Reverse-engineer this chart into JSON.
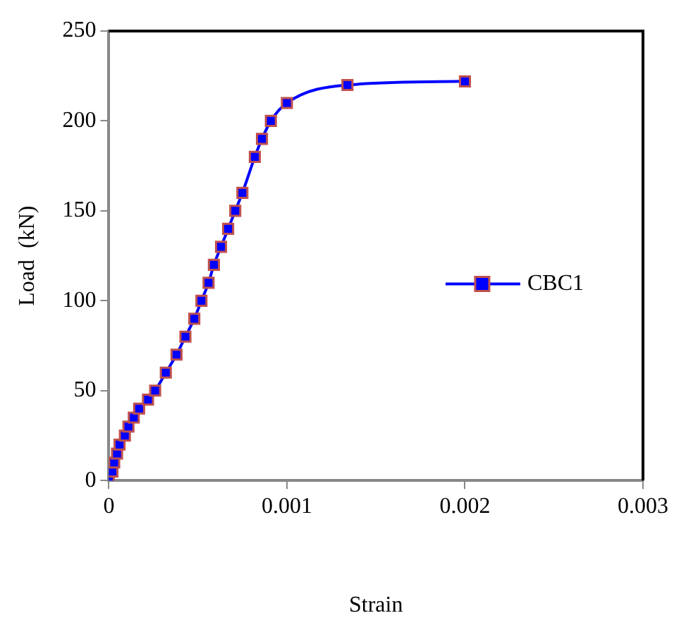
{
  "chart_data": {
    "type": "line",
    "xlabel": "Strain",
    "ylabel": "Load  (kN)",
    "x": [
      0,
      2e-05,
      3e-05,
      4.6e-05,
      6e-05,
      9e-05,
      0.00011,
      0.00014,
      0.00017,
      0.00022,
      0.00026,
      0.00032,
      0.00038,
      0.00043,
      0.00048,
      0.00052,
      0.00056,
      0.00059,
      0.00063,
      0.00067,
      0.00071,
      0.00075,
      0.00082,
      0.00086,
      0.00091,
      0.001,
      0.00134,
      0.002
    ],
    "series": [
      {
        "name": "CBC1",
        "color": "#0000ff",
        "values": [
          0,
          5,
          10,
          15,
          20,
          25,
          30,
          35,
          40,
          45,
          50,
          60,
          70,
          80,
          90,
          100,
          110,
          120,
          130,
          140,
          150,
          160,
          180,
          190,
          200,
          210,
          220,
          222
        ]
      }
    ],
    "xlim": [
      0,
      0.003
    ],
    "xticks": [
      0,
      0.001,
      0.002,
      0.003
    ],
    "ylim": [
      0,
      250
    ],
    "yticks": [
      0,
      50,
      100,
      150,
      200,
      250
    ],
    "grid": false,
    "legend": "right",
    "marker": "square",
    "line_style": "solid"
  }
}
